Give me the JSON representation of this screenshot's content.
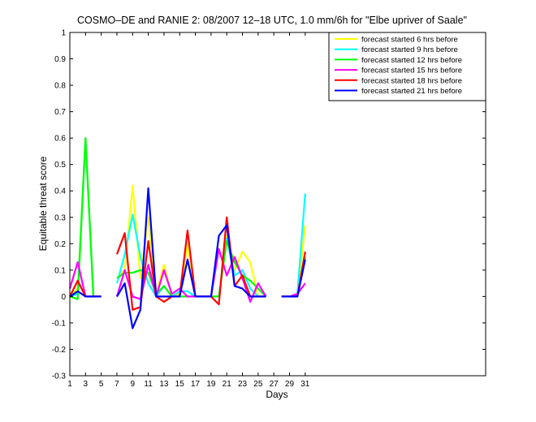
{
  "chart_data": {
    "type": "line",
    "title": "COSMO–DE and RANIE 2: 08/2007 12–18 UTC, 1.0 mm/6h for \"Elbe upriver of Saale\"",
    "xlabel": "Days",
    "ylabel": "Equitable threat score",
    "xlim": [
      1,
      54
    ],
    "ylim": [
      -0.3,
      1
    ],
    "x_ticks": [
      1,
      3,
      5,
      7,
      9,
      11,
      13,
      15,
      17,
      19,
      21,
      23,
      25,
      27,
      29,
      31
    ],
    "y_ticks": [
      -0.3,
      -0.2,
      -0.1,
      0,
      0.1,
      0.2,
      0.3,
      0.4,
      0.5,
      0.6,
      0.7,
      0.8,
      0.9,
      1
    ],
    "grid": false,
    "legend_position": "top-right",
    "series": [
      {
        "name": "forecast started 6 hrs before",
        "color": "#ffff00",
        "points": [
          [
            1,
            0.0
          ],
          [
            2,
            0.03
          ],
          [
            3,
            0.6
          ],
          [
            4,
            0.0
          ],
          [
            5,
            0.0
          ],
          null,
          [
            7,
            0.07
          ],
          [
            8,
            0.1
          ],
          [
            9,
            0.42
          ],
          [
            10,
            0.07
          ],
          [
            11,
            0.3
          ],
          [
            12,
            0.01
          ],
          [
            13,
            0.12
          ],
          [
            14,
            0.0
          ],
          [
            15,
            0.01
          ],
          [
            16,
            0.2
          ],
          [
            17,
            0.0
          ],
          [
            18,
            0.0
          ],
          [
            19,
            0.0
          ],
          [
            20,
            0.0
          ],
          [
            21,
            0.23
          ],
          [
            22,
            0.1
          ],
          [
            23,
            0.17
          ],
          [
            24,
            0.13
          ],
          [
            25,
            0.0
          ],
          [
            26,
            0.0
          ],
          null,
          [
            28,
            0.0
          ],
          [
            29,
            0.0
          ],
          [
            30,
            0.0
          ],
          [
            31,
            0.27
          ]
        ]
      },
      {
        "name": "forecast started 9 hrs before",
        "color": "#00ffff",
        "points": [
          [
            1,
            0.0
          ],
          [
            2,
            0.01
          ],
          [
            3,
            0.6
          ],
          [
            4,
            0.0
          ],
          [
            5,
            0.0
          ],
          null,
          [
            7,
            0.05
          ],
          [
            8,
            0.16
          ],
          [
            9,
            0.31
          ],
          [
            10,
            0.15
          ],
          [
            11,
            0.05
          ],
          [
            12,
            0.0
          ],
          [
            13,
            0.04
          ],
          [
            14,
            0.0
          ],
          [
            15,
            0.02
          ],
          [
            16,
            0.02
          ],
          [
            17,
            0.0
          ],
          [
            18,
            0.0
          ],
          [
            19,
            0.0
          ],
          [
            20,
            0.0
          ],
          [
            21,
            0.22
          ],
          [
            22,
            0.08
          ],
          [
            23,
            0.1
          ],
          [
            24,
            0.03
          ],
          [
            25,
            0.0
          ],
          [
            26,
            0.0
          ],
          null,
          [
            28,
            0.0
          ],
          [
            29,
            0.0
          ],
          [
            30,
            0.01
          ],
          [
            31,
            0.39
          ]
        ]
      },
      {
        "name": "forecast started 12 hrs before",
        "color": "#00ff00",
        "points": [
          [
            1,
            0.0
          ],
          [
            2,
            -0.01
          ],
          [
            3,
            0.6
          ],
          [
            4,
            0.0
          ],
          [
            5,
            0.0
          ],
          null,
          [
            7,
            0.07
          ],
          [
            8,
            0.09
          ],
          [
            9,
            0.09
          ],
          [
            10,
            0.1
          ],
          [
            11,
            0.09
          ],
          [
            12,
            0.01
          ],
          [
            13,
            0.04
          ],
          [
            14,
            0.0
          ],
          [
            15,
            0.0
          ],
          [
            16,
            0.0
          ],
          [
            17,
            0.0
          ],
          [
            18,
            0.0
          ],
          [
            19,
            0.0
          ],
          [
            20,
            0.0
          ],
          [
            21,
            0.21
          ],
          [
            22,
            0.13
          ],
          [
            23,
            0.08
          ],
          [
            24,
            0.06
          ],
          [
            25,
            0.03
          ],
          [
            26,
            0.0
          ],
          null,
          [
            28,
            0.0
          ],
          [
            29,
            0.0
          ],
          [
            30,
            0.0
          ],
          [
            31,
            0.15
          ]
        ]
      },
      {
        "name": "forecast started 15 hrs before",
        "color": "#ff00ff",
        "points": [
          [
            1,
            0.03
          ],
          [
            2,
            0.13
          ],
          [
            3,
            0.0
          ],
          [
            4,
            0.0
          ],
          [
            5,
            0.0
          ],
          null,
          [
            7,
            0.0
          ],
          [
            8,
            0.1
          ],
          [
            9,
            0.0
          ],
          [
            10,
            -0.01
          ],
          [
            11,
            0.12
          ],
          [
            12,
            0.0
          ],
          [
            13,
            0.1
          ],
          [
            14,
            0.01
          ],
          [
            15,
            0.03
          ],
          [
            16,
            0.0
          ],
          [
            17,
            0.0
          ],
          [
            18,
            0.0
          ],
          [
            19,
            0.0
          ],
          [
            20,
            0.18
          ],
          [
            21,
            0.08
          ],
          [
            22,
            0.15
          ],
          [
            23,
            0.07
          ],
          [
            24,
            -0.02
          ],
          [
            25,
            0.05
          ],
          [
            26,
            0.0
          ],
          null,
          [
            28,
            0.0
          ],
          [
            29,
            0.0
          ],
          [
            30,
            0.01
          ],
          [
            31,
            0.05
          ]
        ]
      },
      {
        "name": "forecast started 18 hrs before",
        "color": "#ff0000",
        "points": [
          [
            1,
            0.0
          ],
          [
            2,
            0.06
          ],
          [
            3,
            0.0
          ],
          [
            4,
            0.0
          ],
          [
            5,
            0.0
          ],
          null,
          [
            7,
            0.16
          ],
          [
            8,
            0.24
          ],
          [
            9,
            -0.05
          ],
          [
            10,
            -0.04
          ],
          [
            11,
            0.21
          ],
          [
            12,
            0.0
          ],
          [
            13,
            -0.02
          ],
          [
            14,
            0.0
          ],
          [
            15,
            0.0
          ],
          [
            16,
            0.25
          ],
          [
            17,
            0.0
          ],
          [
            18,
            0.0
          ],
          [
            19,
            0.0
          ],
          [
            20,
            -0.03
          ],
          [
            21,
            0.3
          ],
          [
            22,
            0.04
          ],
          [
            23,
            0.08
          ],
          [
            24,
            0.0
          ],
          [
            25,
            0.0
          ],
          [
            26,
            0.0
          ],
          null,
          [
            28,
            0.0
          ],
          [
            29,
            0.0
          ],
          [
            30,
            0.0
          ],
          [
            31,
            0.17
          ]
        ]
      },
      {
        "name": "forecast started 21 hrs before",
        "color": "#0000ff",
        "points": [
          [
            1,
            0.0
          ],
          [
            2,
            0.02
          ],
          [
            3,
            0.0
          ],
          [
            4,
            0.0
          ],
          [
            5,
            0.0
          ],
          null,
          [
            7,
            0.0
          ],
          [
            8,
            0.05
          ],
          [
            9,
            -0.12
          ],
          [
            10,
            -0.05
          ],
          [
            11,
            0.41
          ],
          [
            12,
            0.0
          ],
          [
            13,
            0.0
          ],
          [
            14,
            0.0
          ],
          [
            15,
            0.0
          ],
          [
            16,
            0.14
          ],
          [
            17,
            0.0
          ],
          [
            18,
            0.0
          ],
          [
            19,
            0.0
          ],
          [
            20,
            0.23
          ],
          [
            21,
            0.27
          ],
          [
            22,
            0.04
          ],
          [
            23,
            0.03
          ],
          [
            24,
            0.0
          ],
          [
            25,
            0.0
          ],
          [
            26,
            0.0
          ],
          null,
          [
            28,
            0.0
          ],
          [
            29,
            0.0
          ],
          [
            30,
            0.0
          ],
          [
            31,
            0.14
          ]
        ]
      }
    ]
  }
}
